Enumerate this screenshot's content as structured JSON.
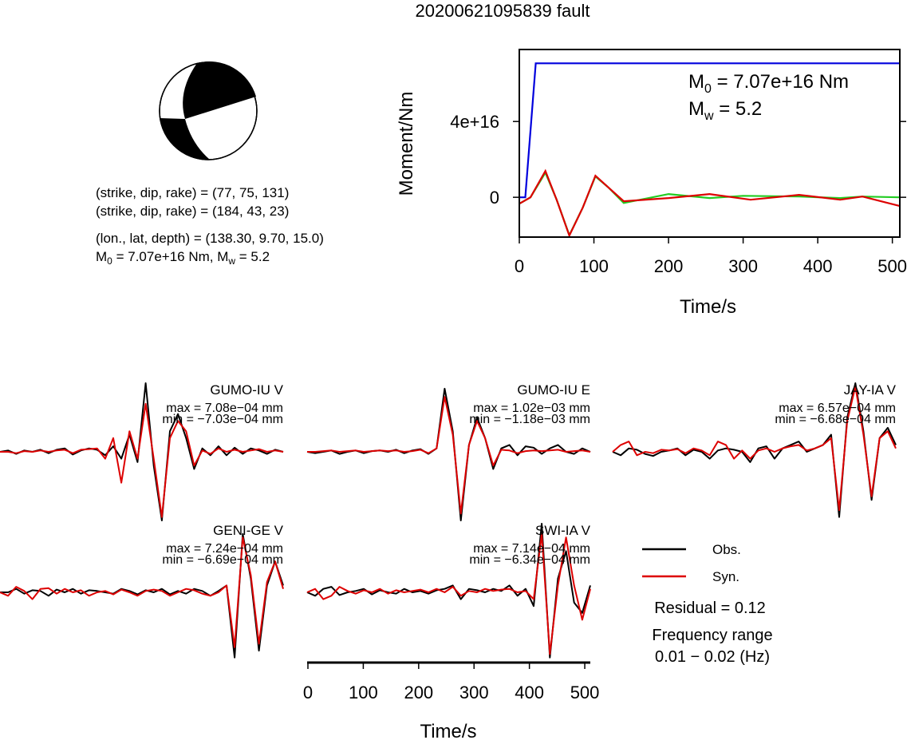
{
  "title": "20200621095839 fault",
  "mechanism": {
    "lines": [
      "(strike, dip, rake) = (77, 75, 131)",
      "(strike, dip, rake) = (184, 43, 23)",
      "(lon., lat, depth) = (138.30, 9.70, 15.0)"
    ],
    "moment_parts": [
      "M",
      "0",
      " = 7.07e+16 Nm, M",
      "w",
      " = 5.2"
    ]
  },
  "chart_data": [
    {
      "type": "line",
      "xlabel": "Time/s",
      "ylabel": "Moment/Nm",
      "xlim": [
        0,
        510
      ],
      "xticks": [
        0,
        100,
        200,
        300,
        400,
        500
      ],
      "ylim": [
        -2.1e+16,
        7.8e+16
      ],
      "yticks": [
        0,
        {
          "value": 4e+16,
          "label": "4e+16"
        }
      ],
      "annotations": [
        [
          "M",
          "0",
          " = 7.07e+16 Nm"
        ],
        [
          "M",
          "w",
          " = 5.2"
        ]
      ],
      "series": [
        {
          "color": "#0000dd",
          "x": [
            0,
            8,
            22,
            510
          ],
          "values": [
            0,
            0,
            7.07e+16,
            7.07e+16
          ]
        },
        {
          "color": "#22cc22",
          "x": [
            0,
            15,
            35,
            50,
            67,
            85,
            102,
            120,
            140,
            200,
            255,
            300,
            375,
            430,
            460,
            510
          ],
          "values": [
            -3400000000000000.0,
            0,
            1.3e+16,
            -1300000000000000.0,
            -2e+16,
            -5500000000000000.0,
            1.1e+16,
            5000000000000000.0,
            -3000000000000000.0,
            1700000000000000.0,
            -400000000000000.0,
            800000000000000.0,
            400000000000000.0,
            -400000000000000.0,
            400000000000000.0,
            0
          ]
        },
        {
          "color": "#dd0000",
          "x": [
            0,
            15,
            35,
            50,
            67,
            85,
            102,
            120,
            140,
            200,
            255,
            310,
            375,
            430,
            460,
            510
          ],
          "values": [
            -3400000000000000.0,
            0,
            1.39e+16,
            -1300000000000000.0,
            -2.02e+16,
            -5500000000000000.0,
            1.14e+16,
            5000000000000000.0,
            -2100000000000000.0,
            -400000000000000.0,
            1700000000000000.0,
            -1300000000000000.0,
            1300000000000000.0,
            -1300000000000000.0,
            400000000000000.0,
            -4600000000000000.0
          ]
        }
      ]
    },
    {
      "type": "waveform",
      "xlabel": "Time/s",
      "xlim": [
        0,
        510
      ],
      "xticks": [
        0,
        100,
        200,
        300,
        400,
        500
      ],
      "legend": [
        {
          "name": "Obs.",
          "color": "#000000"
        },
        {
          "name": "Syn.",
          "color": "#dd0000"
        }
      ],
      "residual": "Residual = 0.12",
      "freq_title": "Frequency range",
      "freq_range": "0.01 − 0.02 (Hz)",
      "panels": [
        {
          "station": "GUMO-IU V",
          "max": "max = 7.08e−04 mm",
          "min": "min = −7.03e−04 mm",
          "obs": [
            0,
            0.02,
            -0.03,
            0.02,
            0,
            0.03,
            -0.02,
            0.03,
            0.05,
            -0.04,
            0.02,
            0.05,
            0.03,
            -0.05,
            0.08,
            -0.1,
            0.25,
            -0.15,
            1.0,
            -0.2,
            -1.0,
            0.3,
            0.55,
            0.2,
            -0.25,
            0.05,
            -0.05,
            0.08,
            -0.05,
            0.06,
            -0.03,
            0.05,
            0.02,
            -0.03,
            0.03,
            0
          ],
          "syn": [
            0,
            0,
            -0.02,
            0.01,
            0,
            0.02,
            0,
            0.02,
            0.03,
            -0.02,
            0.03,
            0.04,
            0.05,
            -0.1,
            0.2,
            -0.45,
            0.3,
            -0.1,
            0.7,
            -0.1,
            -0.95,
            0.2,
            0.45,
            0.3,
            -0.2,
            0.02,
            -0.03,
            0.05,
            0,
            0.03,
            0,
            0.02,
            0.04,
            0,
            0.02,
            0
          ]
        },
        {
          "station": "GUMO-IU E",
          "max": "max = 1.02e−03 mm",
          "min": "min = −1.18e−03 mm",
          "obs": [
            0,
            -0.02,
            0,
            0.02,
            -0.03,
            0,
            0.02,
            -0.02,
            0.01,
            0.02,
            0,
            0.03,
            -0.02,
            0.02,
            0.04,
            -0.03,
            0.05,
            0.92,
            0.3,
            -1.0,
            0.1,
            0.5,
            0.2,
            -0.25,
            0.05,
            0.1,
            -0.05,
            0.08,
            0.06,
            -0.03,
            0.05,
            0.1,
            0,
            -0.03,
            0.05,
            0
          ],
          "syn": [
            0,
            0,
            0.01,
            0.02,
            0,
            0.01,
            0.02,
            0,
            0.01,
            0.02,
            0.01,
            0.02,
            0,
            0.01,
            0.03,
            -0.02,
            0.05,
            0.8,
            0.25,
            -0.9,
            0.1,
            0.45,
            0.2,
            -0.2,
            0.03,
            0.02,
            -0.02,
            0.01,
            0.02,
            0.01,
            0.02,
            0.03,
            0,
            0.01,
            0.02,
            0
          ]
        },
        {
          "station": "JAY-IA V",
          "max": "max = 6.57e−04 mm",
          "min": "min = −6.68e−04 mm",
          "obs": [
            0,
            -0.05,
            0.05,
            0.03,
            -0.03,
            -0.06,
            0,
            0.02,
            0.05,
            -0.05,
            0.03,
            0,
            -0.1,
            0.02,
            0.05,
            0.03,
            0,
            -0.15,
            0.05,
            0.08,
            -0.1,
            0.05,
            0.1,
            0.15,
            0,
            0.05,
            0.1,
            0.25,
            -0.95,
            0.5,
            1.0,
            0.3,
            -0.7,
            0.2,
            0.35,
            0.1
          ],
          "syn": [
            0,
            0.1,
            0.15,
            -0.05,
            0,
            -0.02,
            0.03,
            0.02,
            0.04,
            -0.02,
            0.05,
            0.02,
            -0.05,
            0.15,
            0.1,
            -0.1,
            0.02,
            -0.1,
            0.02,
            0.05,
            0,
            0.05,
            0.08,
            0.1,
            0.02,
            0.05,
            0.1,
            0.2,
            -0.85,
            0.45,
            0.95,
            0.25,
            -0.65,
            0.2,
            0.3,
            0.05
          ]
        },
        {
          "station": "GENI-GE V",
          "max": "max = 7.24e−04 mm",
          "min": "min = −6.69e−04 mm",
          "obs": [
            0,
            0,
            0.05,
            -0.02,
            0.03,
            0.02,
            -0.05,
            0.04,
            0,
            0.05,
            -0.02,
            0.03,
            0.02,
            0,
            -0.02,
            0.05,
            0.02,
            -0.03,
            0.03,
            0,
            0.05,
            -0.03,
            0.02,
            -0.02,
            0.05,
            0.02,
            -0.05,
            0.02,
            0.1,
            -0.95,
            0.85,
            0.2,
            -0.85,
            0.1,
            0.45,
            0.1
          ],
          "syn": [
            0,
            -0.05,
            0.08,
            0.02,
            -0.1,
            0.05,
            0.06,
            -0.02,
            0.05,
            0,
            0.03,
            -0.05,
            0,
            0.02,
            -0.03,
            0.04,
            0,
            -0.05,
            0.02,
            0.04,
            0.02,
            -0.05,
            0,
            0.05,
            0.03,
            -0.02,
            -0.05,
            0,
            0.1,
            -0.8,
            0.8,
            0.25,
            -0.75,
            0.15,
            0.45,
            0.05
          ]
        },
        {
          "station": "SWI-IA V",
          "max": "max = 7.14e−04 mm",
          "min": "min = −6.34e−04 mm",
          "obs": [
            0,
            -0.05,
            0.05,
            0.08,
            -0.04,
            0,
            0.02,
            0.05,
            -0.03,
            0.03,
            0,
            -0.02,
            0.05,
            0,
            0.02,
            -0.02,
            0.03,
            0.05,
            0.1,
            -0.1,
            0.05,
            0.03,
            0,
            0.05,
            0.02,
            0.1,
            -0.05,
            0.05,
            -0.2,
            1.0,
            -0.95,
            0.2,
            0.6,
            -0.15,
            -0.3,
            0.1
          ],
          "syn": [
            0,
            0.05,
            -0.1,
            -0.05,
            0.08,
            0.02,
            -0.02,
            0.03,
            0,
            0.05,
            -0.02,
            0.03,
            0,
            0.02,
            0.04,
            0,
            0.05,
            0,
            0.08,
            -0.05,
            0.02,
            0,
            0.05,
            0.02,
            0.04,
            0.05,
            0,
            0.02,
            -0.1,
            0.85,
            -0.9,
            0.1,
            0.8,
            0.1,
            -0.4,
            0.05
          ]
        }
      ]
    }
  ]
}
